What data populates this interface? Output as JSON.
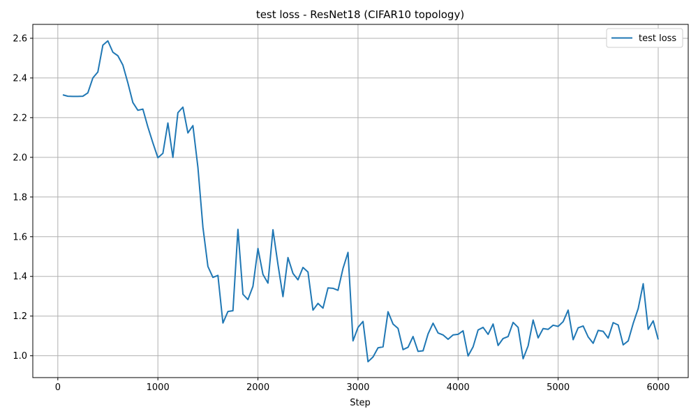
{
  "chart_data": {
    "type": "line",
    "title": "test loss - ResNet18 (CIFAR10 topology)",
    "xlabel": "Step",
    "ylabel": "",
    "xlim": [
      -250,
      6300
    ],
    "ylim": [
      0.89,
      2.67
    ],
    "xticks": [
      0,
      1000,
      2000,
      3000,
      4000,
      5000,
      6000
    ],
    "xtick_labels": [
      "0",
      "1000",
      "2000",
      "3000",
      "4000",
      "5000",
      "6000"
    ],
    "yticks": [
      1.0,
      1.2,
      1.4,
      1.6,
      1.8,
      2.0,
      2.2,
      2.4,
      2.6
    ],
    "ytick_labels": [
      "1.0",
      "1.2",
      "1.4",
      "1.6",
      "1.8",
      "2.0",
      "2.2",
      "2.4",
      "2.6"
    ],
    "grid": true,
    "legend_position": "top-right",
    "series": [
      {
        "name": "test loss",
        "color": "#1f77b4",
        "x": [
          50,
          100,
          150,
          200,
          250,
          300,
          350,
          400,
          450,
          500,
          550,
          600,
          650,
          700,
          750,
          800,
          850,
          900,
          950,
          1000,
          1050,
          1100,
          1150,
          1200,
          1250,
          1300,
          1350,
          1400,
          1450,
          1500,
          1550,
          1600,
          1650,
          1700,
          1750,
          1800,
          1850,
          1900,
          1950,
          2000,
          2050,
          2100,
          2150,
          2200,
          2250,
          2300,
          2350,
          2400,
          2450,
          2500,
          2550,
          2600,
          2650,
          2700,
          2750,
          2800,
          2850,
          2900,
          2950,
          3000,
          3050,
          3100,
          3150,
          3200,
          3250,
          3300,
          3350,
          3400,
          3450,
          3500,
          3550,
          3600,
          3650,
          3700,
          3750,
          3800,
          3850,
          3900,
          3950,
          4000,
          4050,
          4100,
          4150,
          4200,
          4250,
          4300,
          4350,
          4400,
          4450,
          4500,
          4550,
          4600,
          4650,
          4700,
          4750,
          4800,
          4850,
          4900,
          4950,
          5000,
          5050,
          5100,
          5150,
          5200,
          5250,
          5300,
          5350,
          5400,
          5450,
          5500,
          5550,
          5600,
          5650,
          5700,
          5750,
          5800,
          5850,
          5900,
          5950,
          6000
        ],
        "values": [
          2.315,
          2.308,
          2.307,
          2.307,
          2.308,
          2.325,
          2.4,
          2.43,
          2.565,
          2.587,
          2.53,
          2.512,
          2.465,
          2.375,
          2.276,
          2.237,
          2.243,
          2.153,
          2.073,
          1.998,
          2.02,
          2.173,
          2.0,
          2.225,
          2.253,
          2.123,
          2.16,
          1.95,
          1.648,
          1.45,
          1.395,
          1.405,
          1.165,
          1.223,
          1.227,
          1.637,
          1.31,
          1.283,
          1.35,
          1.541,
          1.41,
          1.366,
          1.635,
          1.46,
          1.298,
          1.495,
          1.415,
          1.383,
          1.445,
          1.422,
          1.23,
          1.264,
          1.24,
          1.342,
          1.34,
          1.33,
          1.44,
          1.521,
          1.075,
          1.143,
          1.173,
          0.97,
          0.994,
          1.04,
          1.045,
          1.222,
          1.16,
          1.138,
          1.031,
          1.043,
          1.097,
          1.022,
          1.025,
          1.11,
          1.164,
          1.115,
          1.105,
          1.083,
          1.105,
          1.108,
          1.126,
          0.999,
          1.045,
          1.13,
          1.143,
          1.108,
          1.16,
          1.052,
          1.087,
          1.097,
          1.168,
          1.143,
          0.985,
          1.05,
          1.18,
          1.09,
          1.137,
          1.133,
          1.154,
          1.148,
          1.172,
          1.23,
          1.081,
          1.141,
          1.15,
          1.095,
          1.063,
          1.128,
          1.123,
          1.089,
          1.167,
          1.155,
          1.055,
          1.075,
          1.163,
          1.238,
          1.363,
          1.133,
          1.176,
          1.082
        ]
      }
    ]
  }
}
